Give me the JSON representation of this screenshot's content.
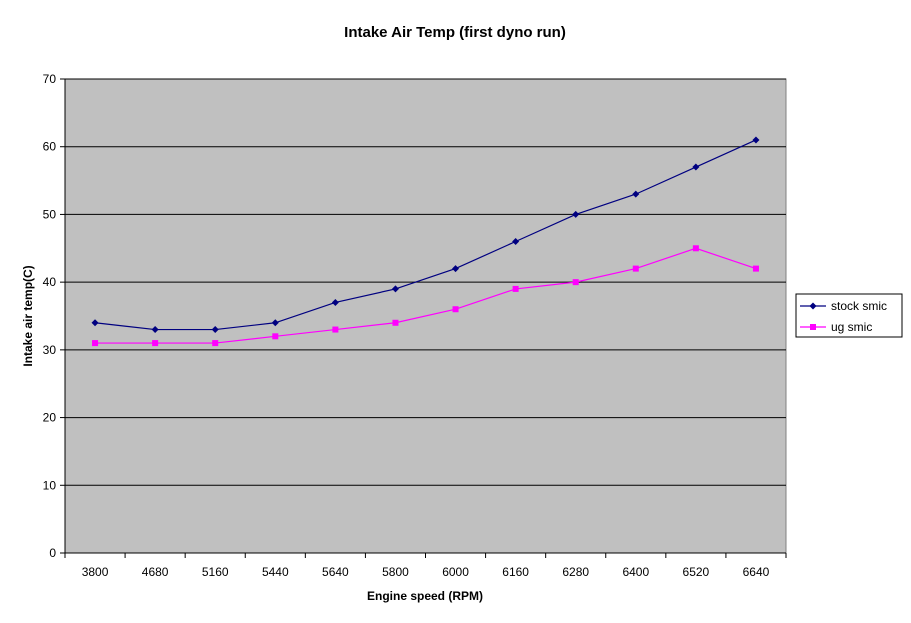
{
  "chart_data": {
    "type": "line",
    "title": "Intake Air Temp (first dyno run)",
    "xlabel": "Engine speed (RPM)",
    "ylabel": "Intake air temp(C)",
    "categories": [
      "3800",
      "4680",
      "5160",
      "5440",
      "5640",
      "5800",
      "6000",
      "6160",
      "6280",
      "6400",
      "6520",
      "6640"
    ],
    "ylim": [
      0,
      70
    ],
    "yticks": [
      "0",
      "10",
      "20",
      "30",
      "40",
      "50",
      "60",
      "70"
    ],
    "grid": true,
    "legend_position": "right",
    "plot_background": "#C0C0C0",
    "series": [
      {
        "name": "stock smic",
        "color": "#000080",
        "marker": "diamond",
        "values": [
          34,
          33,
          33,
          34,
          37,
          39,
          42,
          46,
          50,
          53,
          57,
          61
        ]
      },
      {
        "name": "ug smic",
        "color": "#FF00FF",
        "marker": "square",
        "values": [
          31,
          31,
          31,
          32,
          33,
          34,
          36,
          39,
          40,
          42,
          45,
          42
        ]
      }
    ]
  }
}
